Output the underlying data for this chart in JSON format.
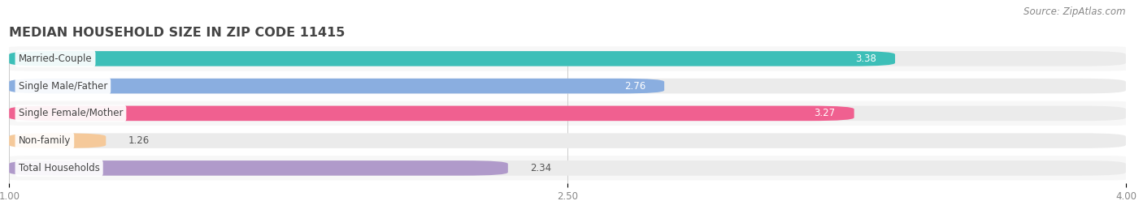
{
  "title": "MEDIAN HOUSEHOLD SIZE IN ZIP CODE 11415",
  "source": "Source: ZipAtlas.com",
  "categories": [
    "Married-Couple",
    "Single Male/Father",
    "Single Female/Mother",
    "Non-family",
    "Total Households"
  ],
  "values": [
    3.38,
    2.76,
    3.27,
    1.26,
    2.34
  ],
  "bar_colors": [
    "#3dbfb8",
    "#8aaee0",
    "#f06090",
    "#f5c99a",
    "#b09aca"
  ],
  "xlim": [
    1.0,
    4.0
  ],
  "xticks": [
    1.0,
    2.5,
    4.0
  ],
  "xtick_labels": [
    "1.00",
    "2.50",
    "4.00"
  ],
  "background_color": "#ffffff",
  "row_bg_even": "#f7f7f7",
  "row_bg_odd": "#ffffff",
  "bar_bg_color": "#ebebeb",
  "title_fontsize": 11.5,
  "source_fontsize": 8.5,
  "label_fontsize": 8.5,
  "value_fontsize": 8.5,
  "bar_height": 0.55,
  "value_inside_color": "#ffffff",
  "value_outside_color": "#555555",
  "label_text_color": "#444444",
  "tick_label_color": "#888888"
}
